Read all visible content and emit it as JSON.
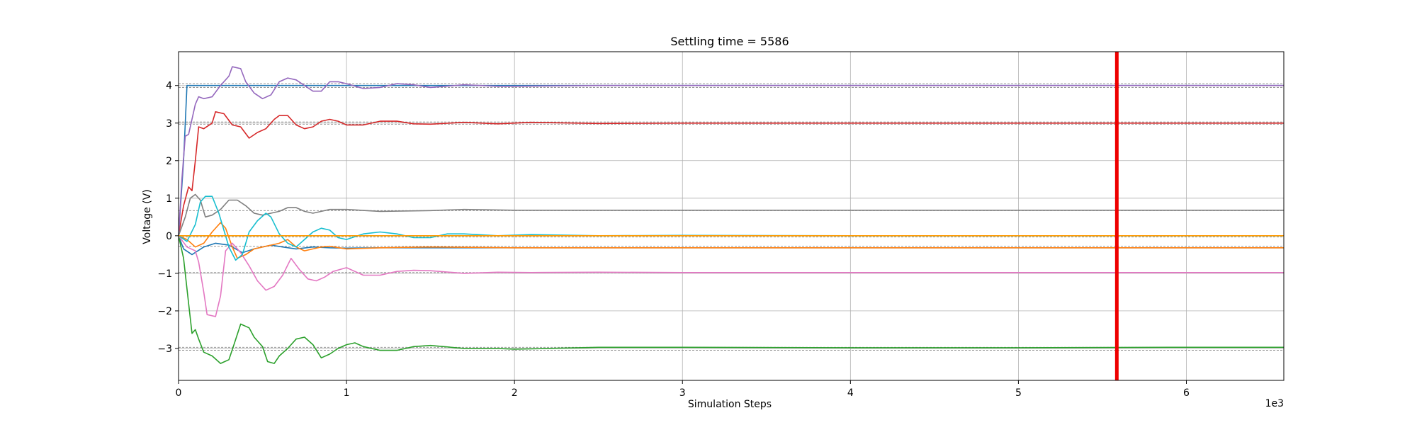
{
  "chart_data": {
    "type": "line",
    "title": "Settling time = 5586",
    "xlabel": "Simulation Steps",
    "ylabel": "Voltage (V)",
    "x_scale_label": "1e3",
    "xlim": [
      0,
      6.58
    ],
    "ylim": [
      -3.85,
      4.9
    ],
    "xticks": [
      0,
      1,
      2,
      3,
      4,
      5,
      6
    ],
    "yticks": [
      -3,
      -2,
      -1,
      0,
      1,
      2,
      3,
      4
    ],
    "grid": true,
    "legend": "none",
    "settling_time": 5586,
    "settling_marker": {
      "x": 5.586,
      "color": "#ee0000"
    },
    "reference_lines": [
      3.95,
      4.05,
      2.97,
      3.03,
      0.67,
      -0.03,
      -0.28,
      -0.98,
      -2.97,
      -3.05
    ],
    "reference_color": "#888888",
    "series": [
      {
        "color": "#1f77b4",
        "values": [
          [
            0,
            0
          ],
          [
            0.03,
            -0.35
          ],
          [
            0.08,
            -0.5
          ],
          [
            0.15,
            -0.3
          ],
          [
            0.22,
            -0.2
          ],
          [
            0.3,
            -0.25
          ],
          [
            0.38,
            -0.45
          ],
          [
            0.45,
            -0.35
          ],
          [
            0.55,
            -0.25
          ],
          [
            0.62,
            -0.3
          ],
          [
            0.7,
            -0.35
          ],
          [
            0.8,
            -0.3
          ],
          [
            0.9,
            -0.32
          ],
          [
            1.0,
            -0.33
          ],
          [
            1.2,
            -0.32
          ],
          [
            1.5,
            -0.32
          ],
          [
            2.0,
            -0.32
          ],
          [
            2.5,
            -0.32
          ],
          [
            3.0,
            -0.32
          ],
          [
            4.0,
            -0.32
          ],
          [
            5.0,
            -0.32
          ],
          [
            6.0,
            -0.32
          ],
          [
            6.58,
            -0.32
          ]
        ]
      },
      {
        "color": "#1f77b4",
        "values": [
          [
            0,
            0
          ],
          [
            0.03,
            2.0
          ],
          [
            0.05,
            4.0
          ],
          [
            0.1,
            4.0
          ],
          [
            0.5,
            4.0
          ],
          [
            1.0,
            4.0
          ],
          [
            2.0,
            4.0
          ],
          [
            3.0,
            4.0
          ],
          [
            4.0,
            4.0
          ],
          [
            5.0,
            4.0
          ],
          [
            6.0,
            4.0
          ],
          [
            6.58,
            4.0
          ]
        ]
      },
      {
        "color": "#ff7f0e",
        "values": [
          [
            0,
            0
          ],
          [
            0.05,
            -0.1
          ],
          [
            0.1,
            -0.3
          ],
          [
            0.15,
            -0.2
          ],
          [
            0.2,
            0.1
          ],
          [
            0.25,
            0.35
          ],
          [
            0.28,
            0.2
          ],
          [
            0.32,
            -0.3
          ],
          [
            0.35,
            -0.6
          ],
          [
            0.4,
            -0.5
          ],
          [
            0.45,
            -0.35
          ],
          [
            0.5,
            -0.3
          ],
          [
            0.55,
            -0.25
          ],
          [
            0.6,
            -0.2
          ],
          [
            0.65,
            -0.1
          ],
          [
            0.7,
            -0.3
          ],
          [
            0.75,
            -0.4
          ],
          [
            0.8,
            -0.35
          ],
          [
            0.85,
            -0.3
          ],
          [
            0.9,
            -0.28
          ],
          [
            1.0,
            -0.35
          ],
          [
            1.2,
            -0.32
          ],
          [
            1.5,
            -0.3
          ],
          [
            2.0,
            -0.32
          ],
          [
            3.0,
            -0.32
          ],
          [
            4.0,
            -0.32
          ],
          [
            5.0,
            -0.32
          ],
          [
            6.0,
            -0.32
          ],
          [
            6.58,
            -0.32
          ]
        ]
      },
      {
        "color": "#2ca02c",
        "values": [
          [
            0,
            0
          ],
          [
            0.03,
            -0.6
          ],
          [
            0.06,
            -1.8
          ],
          [
            0.08,
            -2.6
          ],
          [
            0.1,
            -2.5
          ],
          [
            0.12,
            -2.75
          ],
          [
            0.15,
            -3.1
          ],
          [
            0.2,
            -3.2
          ],
          [
            0.25,
            -3.4
          ],
          [
            0.3,
            -3.3
          ],
          [
            0.33,
            -2.9
          ],
          [
            0.37,
            -2.35
          ],
          [
            0.42,
            -2.45
          ],
          [
            0.45,
            -2.7
          ],
          [
            0.5,
            -2.95
          ],
          [
            0.53,
            -3.35
          ],
          [
            0.57,
            -3.4
          ],
          [
            0.6,
            -3.2
          ],
          [
            0.65,
            -3.0
          ],
          [
            0.7,
            -2.75
          ],
          [
            0.75,
            -2.7
          ],
          [
            0.8,
            -2.9
          ],
          [
            0.85,
            -3.25
          ],
          [
            0.9,
            -3.15
          ],
          [
            0.95,
            -3.0
          ],
          [
            1.0,
            -2.9
          ],
          [
            1.05,
            -2.85
          ],
          [
            1.1,
            -2.95
          ],
          [
            1.2,
            -3.05
          ],
          [
            1.3,
            -3.05
          ],
          [
            1.4,
            -2.95
          ],
          [
            1.5,
            -2.92
          ],
          [
            1.7,
            -3.0
          ],
          [
            1.9,
            -3.0
          ],
          [
            2.0,
            -3.02
          ],
          [
            2.5,
            -2.97
          ],
          [
            3.0,
            -2.97
          ],
          [
            4.0,
            -2.98
          ],
          [
            5.0,
            -2.98
          ],
          [
            6.0,
            -2.97
          ],
          [
            6.58,
            -2.97
          ]
        ]
      },
      {
        "color": "#d62728",
        "values": [
          [
            0,
            0
          ],
          [
            0.03,
            0.8
          ],
          [
            0.06,
            1.3
          ],
          [
            0.08,
            1.2
          ],
          [
            0.1,
            2.0
          ],
          [
            0.12,
            2.9
          ],
          [
            0.15,
            2.85
          ],
          [
            0.2,
            3.0
          ],
          [
            0.22,
            3.3
          ],
          [
            0.27,
            3.25
          ],
          [
            0.32,
            2.95
          ],
          [
            0.37,
            2.9
          ],
          [
            0.42,
            2.6
          ],
          [
            0.47,
            2.75
          ],
          [
            0.52,
            2.85
          ],
          [
            0.57,
            3.1
          ],
          [
            0.6,
            3.2
          ],
          [
            0.65,
            3.2
          ],
          [
            0.7,
            2.95
          ],
          [
            0.75,
            2.85
          ],
          [
            0.8,
            2.9
          ],
          [
            0.85,
            3.05
          ],
          [
            0.9,
            3.1
          ],
          [
            0.95,
            3.05
          ],
          [
            1.0,
            2.95
          ],
          [
            1.1,
            2.95
          ],
          [
            1.2,
            3.05
          ],
          [
            1.3,
            3.05
          ],
          [
            1.4,
            2.98
          ],
          [
            1.5,
            2.97
          ],
          [
            1.7,
            3.02
          ],
          [
            1.9,
            2.98
          ],
          [
            2.1,
            3.02
          ],
          [
            2.5,
            2.99
          ],
          [
            3.0,
            3.0
          ],
          [
            4.0,
            3.0
          ],
          [
            5.0,
            3.0
          ],
          [
            6.0,
            3.0
          ],
          [
            6.58,
            3.0
          ]
        ]
      },
      {
        "color": "#9467bd",
        "values": [
          [
            0,
            0
          ],
          [
            0.02,
            1.5
          ],
          [
            0.04,
            2.65
          ],
          [
            0.06,
            2.7
          ],
          [
            0.1,
            3.5
          ],
          [
            0.12,
            3.7
          ],
          [
            0.15,
            3.65
          ],
          [
            0.2,
            3.7
          ],
          [
            0.25,
            4.0
          ],
          [
            0.3,
            4.25
          ],
          [
            0.32,
            4.5
          ],
          [
            0.37,
            4.45
          ],
          [
            0.4,
            4.1
          ],
          [
            0.45,
            3.8
          ],
          [
            0.5,
            3.65
          ],
          [
            0.55,
            3.75
          ],
          [
            0.6,
            4.1
          ],
          [
            0.65,
            4.2
          ],
          [
            0.7,
            4.15
          ],
          [
            0.75,
            4.0
          ],
          [
            0.8,
            3.85
          ],
          [
            0.85,
            3.85
          ],
          [
            0.9,
            4.1
          ],
          [
            0.95,
            4.1
          ],
          [
            1.0,
            4.05
          ],
          [
            1.1,
            3.92
          ],
          [
            1.2,
            3.95
          ],
          [
            1.3,
            4.05
          ],
          [
            1.4,
            4.02
          ],
          [
            1.5,
            3.95
          ],
          [
            1.7,
            4.02
          ],
          [
            1.9,
            3.98
          ],
          [
            2.0,
            3.98
          ],
          [
            2.5,
            4.0
          ],
          [
            3.0,
            4.0
          ],
          [
            4.0,
            4.0
          ],
          [
            5.0,
            4.0
          ],
          [
            6.0,
            4.0
          ],
          [
            6.58,
            4.0
          ]
        ]
      },
      {
        "color": "#e377c2",
        "values": [
          [
            0,
            0
          ],
          [
            0.05,
            -0.3
          ],
          [
            0.1,
            -0.4
          ],
          [
            0.12,
            -0.7
          ],
          [
            0.15,
            -1.5
          ],
          [
            0.17,
            -2.1
          ],
          [
            0.22,
            -2.15
          ],
          [
            0.25,
            -1.6
          ],
          [
            0.28,
            -0.4
          ],
          [
            0.32,
            -0.2
          ],
          [
            0.37,
            -0.45
          ],
          [
            0.42,
            -0.8
          ],
          [
            0.47,
            -1.2
          ],
          [
            0.52,
            -1.45
          ],
          [
            0.57,
            -1.35
          ],
          [
            0.62,
            -1.05
          ],
          [
            0.67,
            -0.6
          ],
          [
            0.72,
            -0.9
          ],
          [
            0.77,
            -1.15
          ],
          [
            0.82,
            -1.2
          ],
          [
            0.87,
            -1.1
          ],
          [
            0.92,
            -0.95
          ],
          [
            1.0,
            -0.85
          ],
          [
            1.05,
            -0.95
          ],
          [
            1.1,
            -1.05
          ],
          [
            1.2,
            -1.05
          ],
          [
            1.3,
            -0.95
          ],
          [
            1.4,
            -0.92
          ],
          [
            1.5,
            -0.93
          ],
          [
            1.7,
            -1.0
          ],
          [
            1.9,
            -0.97
          ],
          [
            2.1,
            -0.98
          ],
          [
            2.5,
            -0.97
          ],
          [
            3.0,
            -0.98
          ],
          [
            4.0,
            -0.98
          ],
          [
            5.0,
            -0.98
          ],
          [
            6.0,
            -0.98
          ],
          [
            6.58,
            -0.98
          ]
        ]
      },
      {
        "color": "#7f7f7f",
        "values": [
          [
            0,
            0
          ],
          [
            0.04,
            0.5
          ],
          [
            0.07,
            1.0
          ],
          [
            0.1,
            1.1
          ],
          [
            0.13,
            0.95
          ],
          [
            0.16,
            0.5
          ],
          [
            0.2,
            0.55
          ],
          [
            0.25,
            0.7
          ],
          [
            0.3,
            0.95
          ],
          [
            0.35,
            0.95
          ],
          [
            0.4,
            0.8
          ],
          [
            0.45,
            0.6
          ],
          [
            0.5,
            0.55
          ],
          [
            0.55,
            0.6
          ],
          [
            0.6,
            0.65
          ],
          [
            0.65,
            0.75
          ],
          [
            0.7,
            0.75
          ],
          [
            0.75,
            0.65
          ],
          [
            0.8,
            0.6
          ],
          [
            0.85,
            0.65
          ],
          [
            0.9,
            0.7
          ],
          [
            1.0,
            0.7
          ],
          [
            1.2,
            0.65
          ],
          [
            1.5,
            0.67
          ],
          [
            1.7,
            0.7
          ],
          [
            2.0,
            0.68
          ],
          [
            2.5,
            0.68
          ],
          [
            3.0,
            0.68
          ],
          [
            4.0,
            0.68
          ],
          [
            5.0,
            0.68
          ],
          [
            6.0,
            0.68
          ],
          [
            6.58,
            0.68
          ]
        ]
      },
      {
        "color": "#bcbd22",
        "values": [
          [
            0,
            0
          ],
          [
            0.5,
            0.0
          ],
          [
            1.0,
            0.0
          ],
          [
            2.0,
            0.0
          ],
          [
            3.0,
            0.0
          ],
          [
            4.0,
            0.0
          ],
          [
            5.0,
            0.0
          ],
          [
            6.0,
            0.0
          ],
          [
            6.58,
            0.0
          ]
        ]
      },
      {
        "color": "#17becf",
        "values": [
          [
            0,
            0
          ],
          [
            0.05,
            -0.15
          ],
          [
            0.1,
            0.3
          ],
          [
            0.13,
            0.9
          ],
          [
            0.16,
            1.05
          ],
          [
            0.2,
            1.05
          ],
          [
            0.24,
            0.6
          ],
          [
            0.27,
            0.15
          ],
          [
            0.3,
            -0.3
          ],
          [
            0.34,
            -0.65
          ],
          [
            0.38,
            -0.5
          ],
          [
            0.42,
            0.1
          ],
          [
            0.47,
            0.4
          ],
          [
            0.52,
            0.6
          ],
          [
            0.55,
            0.5
          ],
          [
            0.6,
            0.05
          ],
          [
            0.65,
            -0.2
          ],
          [
            0.7,
            -0.3
          ],
          [
            0.75,
            -0.1
          ],
          [
            0.8,
            0.1
          ],
          [
            0.85,
            0.2
          ],
          [
            0.9,
            0.15
          ],
          [
            0.95,
            -0.05
          ],
          [
            1.0,
            -0.1
          ],
          [
            1.1,
            0.05
          ],
          [
            1.2,
            0.1
          ],
          [
            1.3,
            0.05
          ],
          [
            1.4,
            -0.05
          ],
          [
            1.5,
            -0.05
          ],
          [
            1.6,
            0.05
          ],
          [
            1.7,
            0.05
          ],
          [
            1.9,
            0.0
          ],
          [
            2.1,
            0.03
          ],
          [
            2.5,
            0.0
          ],
          [
            3.0,
            0.01
          ],
          [
            4.0,
            0.0
          ],
          [
            5.0,
            0.0
          ],
          [
            6.0,
            0.0
          ],
          [
            6.58,
            0.0
          ]
        ]
      },
      {
        "color": "#ff9900",
        "values": [
          [
            0,
            0
          ],
          [
            1.0,
            0.0
          ],
          [
            2.0,
            0.0
          ],
          [
            3.0,
            0.0
          ],
          [
            4.0,
            0.0
          ],
          [
            5.0,
            0.0
          ],
          [
            6.0,
            0.0
          ],
          [
            6.58,
            0.0
          ]
        ]
      }
    ]
  }
}
